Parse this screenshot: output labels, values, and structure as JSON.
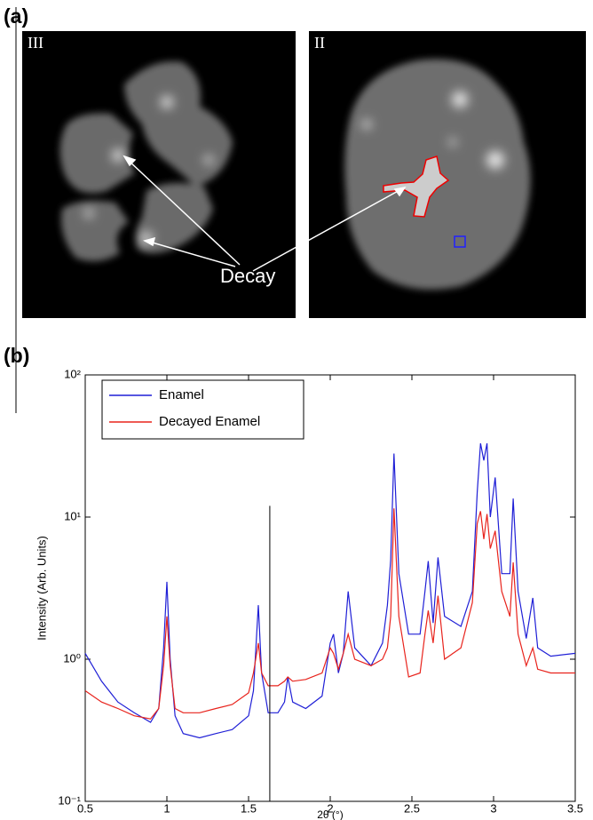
{
  "figure": {
    "panel_a_label": "(a)",
    "panel_b_label": "(b)",
    "image_labels": [
      "III",
      "II"
    ],
    "annotation": "Decay"
  },
  "chart_data": {
    "type": "line",
    "xlabel": "2θ (°)",
    "ylabel": "Intensity (Arb. Units)",
    "x": [
      0.5,
      0.6,
      0.7,
      0.8,
      0.9,
      0.95,
      0.98,
      1.0,
      1.02,
      1.05,
      1.1,
      1.2,
      1.3,
      1.4,
      1.5,
      1.53,
      1.56,
      1.58,
      1.62,
      1.68,
      1.72,
      1.74,
      1.77,
      1.85,
      1.95,
      2.0,
      2.02,
      2.05,
      2.08,
      2.11,
      2.15,
      2.25,
      2.32,
      2.35,
      2.37,
      2.39,
      2.42,
      2.48,
      2.55,
      2.58,
      2.6,
      2.63,
      2.66,
      2.7,
      2.8,
      2.87,
      2.9,
      2.92,
      2.94,
      2.96,
      2.98,
      3.01,
      3.05,
      3.1,
      3.12,
      3.15,
      3.2,
      3.24,
      3.27,
      3.35,
      3.5
    ],
    "series": [
      {
        "name": "Enamel",
        "color": "#1f1fd6",
        "values": [
          1.1,
          0.7,
          0.5,
          0.42,
          0.36,
          0.45,
          1.2,
          3.5,
          1.0,
          0.4,
          0.3,
          0.28,
          0.3,
          0.32,
          0.4,
          0.6,
          2.4,
          0.8,
          0.42,
          0.42,
          0.5,
          0.75,
          0.5,
          0.45,
          0.55,
          1.3,
          1.5,
          0.8,
          1.1,
          3.0,
          1.2,
          0.9,
          1.3,
          2.4,
          5,
          28,
          4,
          1.5,
          1.5,
          3,
          4.9,
          1.8,
          5.2,
          2,
          1.7,
          3,
          15,
          33,
          25,
          33,
          10,
          19,
          4,
          4,
          13.5,
          3,
          1.4,
          2.7,
          1.2,
          1.05,
          1.1
        ]
      },
      {
        "name": "Decayed Enamel",
        "color": "#e8231c",
        "values": [
          0.6,
          0.5,
          0.45,
          0.4,
          0.38,
          0.45,
          0.9,
          2.0,
          0.9,
          0.45,
          0.42,
          0.42,
          0.45,
          0.48,
          0.58,
          0.8,
          1.3,
          0.8,
          0.65,
          0.65,
          0.7,
          0.75,
          0.7,
          0.72,
          0.8,
          1.2,
          1.1,
          0.85,
          1.1,
          1.5,
          1.0,
          0.9,
          1.0,
          1.2,
          2.0,
          11.5,
          2.0,
          0.75,
          0.8,
          1.5,
          2.2,
          1.3,
          2.8,
          1.0,
          1.2,
          2.5,
          9,
          11,
          7,
          10.5,
          6,
          8,
          3,
          2,
          4.8,
          1.5,
          0.9,
          1.2,
          0.85,
          0.8,
          0.8
        ]
      }
    ],
    "xlim": [
      0.5,
      3.5
    ],
    "xticks": [
      0.5,
      1,
      1.5,
      2,
      2.5,
      3,
      3.5
    ],
    "ylim": [
      0.1,
      100
    ],
    "yscale": "log",
    "yticks": [
      {
        "value": 0.1,
        "label": "10⁻¹"
      },
      {
        "value": 1,
        "label": "10⁰"
      },
      {
        "value": 10,
        "label": "10¹"
      },
      {
        "value": 100,
        "label": "10²"
      }
    ],
    "vline_x": 1.63,
    "vline_top": 12,
    "legend": "upper left",
    "grid": false
  }
}
